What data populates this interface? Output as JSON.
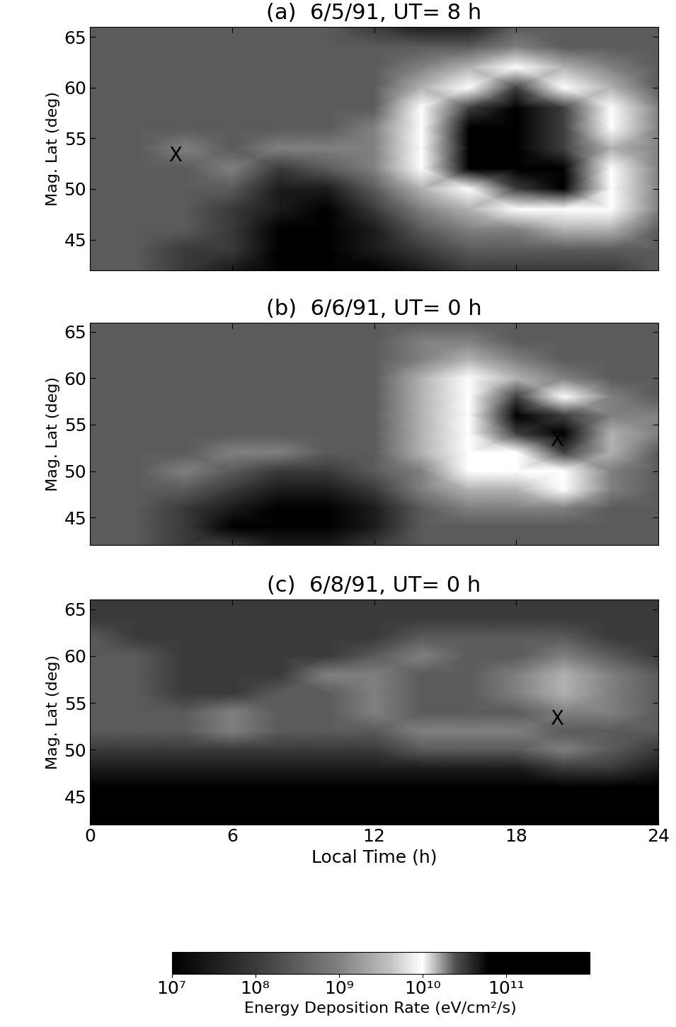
{
  "chart_data": [
    {
      "type": "heatmap",
      "title": "(a)  6/5/91, UT= 8 h",
      "y_label": "Mag. Lat (deg)",
      "tick_labels": "y",
      "x": [
        0,
        2,
        4,
        6,
        8,
        10,
        12,
        14,
        16,
        18,
        20,
        22,
        24
      ],
      "y": [
        66,
        64,
        62,
        60,
        58,
        56,
        54,
        52,
        50,
        48,
        46,
        44,
        42
      ],
      "values": [
        [
          300000000.0,
          300000000.0,
          300000000.0,
          300000000.0,
          300000000.0,
          300000000.0,
          100000000.0,
          30000000.0,
          30000000.0,
          300000000.0,
          300000000.0,
          300000000.0,
          300000000.0
        ],
        [
          300000000.0,
          300000000.0,
          300000000.0,
          300000000.0,
          300000000.0,
          300000000.0,
          300000000.0,
          300000000.0,
          300000000.0,
          1000000000.0,
          300000000.0,
          300000000.0,
          300000000.0
        ],
        [
          300000000.0,
          300000000.0,
          300000000.0,
          300000000.0,
          300000000.0,
          300000000.0,
          300000000.0,
          1000000000.0,
          3000000000.0,
          10000000000.0,
          3000000000.0,
          1000000000.0,
          300000000.0
        ],
        [
          300000000.0,
          300000000.0,
          300000000.0,
          300000000.0,
          300000000.0,
          300000000.0,
          300000000.0,
          3000000000.0,
          10000000000.0,
          30000000000.0,
          10000000000.0,
          3000000000.0,
          300000000.0
        ],
        [
          300000000.0,
          300000000.0,
          300000000.0,
          300000000.0,
          300000000.0,
          300000000.0,
          300000000.0,
          10000000000.0,
          30000000000.0,
          100000000000.0,
          30000000000.0,
          10000000000.0,
          1000000000.0
        ],
        [
          300000000.0,
          300000000.0,
          300000000.0,
          300000000.0,
          300000000.0,
          300000000.0,
          1000000000.0,
          10000000000.0,
          200000000000.0,
          200000000000.0,
          30000000000.0,
          10000000000.0,
          1000000000.0
        ],
        [
          300000000.0,
          300000000.0,
          1000000000.0,
          300000000.0,
          1000000000.0,
          1000000000.0,
          1000000000.0,
          10000000000.0,
          300000000000.0,
          200000000000.0,
          30000000000.0,
          3000000000.0,
          1000000000.0
        ],
        [
          300000000.0,
          300000000.0,
          300000000.0,
          1000000000.0,
          100000000.0,
          300000000.0,
          1000000000.0,
          10000000000.0,
          300000000000.0,
          300000000000.0,
          200000000000.0,
          10000000000.0,
          1000000000.0
        ],
        [
          300000000.0,
          300000000.0,
          300000000.0,
          300000000.0,
          30000000.0,
          30000000.0,
          300000000.0,
          3000000000.0,
          10000000000.0,
          30000000000.0,
          100000000000.0,
          10000000000.0,
          1000000000.0
        ],
        [
          300000000.0,
          300000000.0,
          300000000.0,
          100000000.0,
          30000000.0,
          10000000.0,
          100000000.0,
          1000000000.0,
          3000000000.0,
          10000000000.0,
          10000000000.0,
          10000000000.0,
          1000000000.0
        ],
        [
          300000000.0,
          300000000.0,
          300000000.0,
          100000000.0,
          10000000.0,
          10000000.0,
          30000000.0,
          300000000.0,
          1000000000.0,
          1000000000.0,
          3000000000.0,
          3000000000.0,
          300000000.0
        ],
        [
          300000000.0,
          300000000.0,
          100000000.0,
          100000000.0,
          10000000.0,
          10000000.0,
          30000000.0,
          100000000.0,
          300000000.0,
          300000000.0,
          300000000.0,
          300000000.0,
          300000000.0
        ],
        [
          300000000.0,
          300000000.0,
          100000000.0,
          30000000.0,
          10000000.0,
          10000000.0,
          10000000.0,
          30000000.0,
          100000000.0,
          100000000.0,
          100000000.0,
          100000000.0,
          300000000.0
        ]
      ],
      "xlim": [
        0,
        24
      ],
      "ylim": [
        42,
        66
      ],
      "xticks": [
        0,
        6,
        12,
        18,
        24
      ],
      "yticks": [
        45,
        50,
        55,
        60,
        65
      ],
      "annotations": [
        {
          "text": "X",
          "x": 3.6,
          "y": 53.3
        }
      ]
    },
    {
      "type": "heatmap",
      "title": "(b)  6/6/91, UT= 0 h",
      "y_label": "Mag. Lat (deg)",
      "tick_labels": "y",
      "x": [
        0,
        2,
        4,
        6,
        8,
        10,
        12,
        14,
        16,
        18,
        20,
        22,
        24
      ],
      "y": [
        66,
        64,
        62,
        60,
        58,
        56,
        54,
        52,
        50,
        48,
        46,
        44,
        42
      ],
      "values": [
        [
          300000000.0,
          300000000.0,
          300000000.0,
          300000000.0,
          300000000.0,
          300000000.0,
          300000000.0,
          300000000.0,
          300000000.0,
          300000000.0,
          300000000.0,
          300000000.0,
          300000000.0
        ],
        [
          300000000.0,
          300000000.0,
          300000000.0,
          300000000.0,
          300000000.0,
          300000000.0,
          300000000.0,
          1000000000.0,
          1000000000.0,
          300000000.0,
          300000000.0,
          300000000.0,
          300000000.0
        ],
        [
          300000000.0,
          300000000.0,
          300000000.0,
          300000000.0,
          300000000.0,
          300000000.0,
          300000000.0,
          1000000000.0,
          3000000000.0,
          1000000000.0,
          300000000.0,
          300000000.0,
          300000000.0
        ],
        [
          300000000.0,
          300000000.0,
          300000000.0,
          300000000.0,
          300000000.0,
          300000000.0,
          300000000.0,
          3000000000.0,
          10000000000.0,
          3000000000.0,
          1000000000.0,
          300000000.0,
          300000000.0
        ],
        [
          300000000.0,
          300000000.0,
          300000000.0,
          300000000.0,
          300000000.0,
          300000000.0,
          300000000.0,
          3000000000.0,
          10000000000.0,
          30000000000.0,
          10000000000.0,
          1000000000.0,
          300000000.0
        ],
        [
          300000000.0,
          300000000.0,
          300000000.0,
          300000000.0,
          300000000.0,
          300000000.0,
          300000000.0,
          3000000000.0,
          10000000000.0,
          200000000000.0,
          30000000000.0,
          1000000000.0,
          1000000000.0
        ],
        [
          300000000.0,
          300000000.0,
          300000000.0,
          300000000.0,
          300000000.0,
          300000000.0,
          300000000.0,
          3000000000.0,
          10000000000.0,
          30000000000.0,
          100000000000.0,
          3000000000.0,
          1000000000.0
        ],
        [
          300000000.0,
          300000000.0,
          300000000.0,
          1000000000.0,
          1000000000.0,
          300000000.0,
          300000000.0,
          3000000000.0,
          10000000000.0,
          10000000000.0,
          30000000000.0,
          3000000000.0,
          300000000.0
        ],
        [
          300000000.0,
          300000000.0,
          1000000000.0,
          300000000.0,
          100000000.0,
          100000000.0,
          300000000.0,
          1000000000.0,
          10000000000.0,
          10000000000.0,
          10000000000.0,
          1000000000.0,
          300000000.0
        ],
        [
          300000000.0,
          300000000.0,
          300000000.0,
          100000000.0,
          30000000.0,
          30000000.0,
          100000000.0,
          1000000000.0,
          3000000000.0,
          3000000000.0,
          10000000000.0,
          1000000000.0,
          300000000.0
        ],
        [
          300000000.0,
          300000000.0,
          100000000.0,
          30000000.0,
          10000000.0,
          10000000.0,
          30000000.0,
          300000000.0,
          1000000000.0,
          1000000000.0,
          1000000000.0,
          300000000.0,
          300000000.0
        ],
        [
          300000000.0,
          300000000.0,
          100000000.0,
          10000000.0,
          10000000.0,
          10000000.0,
          30000000.0,
          300000000.0,
          300000000.0,
          300000000.0,
          300000000.0,
          300000000.0,
          300000000.0
        ],
        [
          300000000.0,
          300000000.0,
          100000000.0,
          100000000.0,
          30000000.0,
          30000000.0,
          100000000.0,
          300000000.0,
          300000000.0,
          300000000.0,
          300000000.0,
          300000000.0,
          300000000.0
        ]
      ],
      "xlim": [
        0,
        24
      ],
      "ylim": [
        42,
        66
      ],
      "xticks": [
        0,
        6,
        12,
        18,
        24
      ],
      "yticks": [
        45,
        50,
        55,
        60,
        65
      ],
      "annotations": [
        {
          "text": "X",
          "x": 19.7,
          "y": 53.3
        }
      ]
    },
    {
      "type": "heatmap",
      "title": "(c)  6/8/91, UT= 0 h",
      "y_label": "Mag. Lat (deg)",
      "x_label": "Local Time (h)",
      "x": [
        0,
        2,
        4,
        6,
        8,
        10,
        12,
        14,
        16,
        18,
        20,
        22,
        24
      ],
      "y": [
        66,
        64,
        62,
        60,
        58,
        56,
        54,
        52,
        50,
        48,
        46,
        44,
        42
      ],
      "values": [
        [
          100000000.0,
          100000000.0,
          100000000.0,
          100000000.0,
          100000000.0,
          100000000.0,
          100000000.0,
          100000000.0,
          100000000.0,
          100000000.0,
          100000000.0,
          100000000.0,
          100000000.0
        ],
        [
          100000000.0,
          100000000.0,
          100000000.0,
          100000000.0,
          100000000.0,
          100000000.0,
          100000000.0,
          100000000.0,
          100000000.0,
          100000000.0,
          100000000.0,
          100000000.0,
          100000000.0
        ],
        [
          300000000.0,
          100000000.0,
          100000000.0,
          100000000.0,
          100000000.0,
          100000000.0,
          100000000.0,
          300000000.0,
          300000000.0,
          300000000.0,
          300000000.0,
          100000000.0,
          100000000.0
        ],
        [
          300000000.0,
          300000000.0,
          100000000.0,
          100000000.0,
          100000000.0,
          100000000.0,
          300000000.0,
          1000000000.0,
          300000000.0,
          300000000.0,
          1000000000.0,
          300000000.0,
          100000000.0
        ],
        [
          300000000.0,
          300000000.0,
          100000000.0,
          100000000.0,
          100000000.0,
          1000000000.0,
          1000000000.0,
          300000000.0,
          300000000.0,
          1000000000.0,
          3000000000.0,
          1000000000.0,
          300000000.0
        ],
        [
          300000000.0,
          300000000.0,
          100000000.0,
          100000000.0,
          300000000.0,
          300000000.0,
          1000000000.0,
          300000000.0,
          300000000.0,
          1000000000.0,
          3000000000.0,
          1000000000.0,
          300000000.0
        ],
        [
          300000000.0,
          300000000.0,
          300000000.0,
          1000000000.0,
          300000000.0,
          300000000.0,
          1000000000.0,
          300000000.0,
          300000000.0,
          300000000.0,
          1000000000.0,
          1000000000.0,
          300000000.0
        ],
        [
          300000000.0,
          300000000.0,
          300000000.0,
          1000000000.0,
          300000000.0,
          300000000.0,
          300000000.0,
          1000000000.0,
          1000000000.0,
          1000000000.0,
          300000000.0,
          300000000.0,
          300000000.0
        ],
        [
          100000000.0,
          100000000.0,
          100000000.0,
          100000000.0,
          100000000.0,
          100000000.0,
          100000000.0,
          300000000.0,
          300000000.0,
          300000000.0,
          1000000000.0,
          300000000.0,
          100000000.0
        ],
        [
          30000000.0,
          30000000.0,
          30000000.0,
          30000000.0,
          30000000.0,
          30000000.0,
          30000000.0,
          30000000.0,
          30000000.0,
          30000000.0,
          100000000.0,
          100000000.0,
          30000000.0
        ],
        [
          10000000.0,
          10000000.0,
          10000000.0,
          10000000.0,
          10000000.0,
          10000000.0,
          10000000.0,
          10000000.0,
          10000000.0,
          10000000.0,
          10000000.0,
          10000000.0,
          10000000.0
        ],
        [
          10000000.0,
          10000000.0,
          10000000.0,
          10000000.0,
          10000000.0,
          10000000.0,
          10000000.0,
          10000000.0,
          10000000.0,
          10000000.0,
          10000000.0,
          10000000.0,
          10000000.0
        ],
        [
          10000000.0,
          10000000.0,
          10000000.0,
          10000000.0,
          10000000.0,
          10000000.0,
          10000000.0,
          10000000.0,
          10000000.0,
          10000000.0,
          10000000.0,
          10000000.0,
          10000000.0
        ]
      ],
      "xlim": [
        0,
        24
      ],
      "ylim": [
        42,
        66
      ],
      "xticks": [
        0,
        6,
        12,
        18,
        24
      ],
      "yticks": [
        45,
        50,
        55,
        60,
        65
      ],
      "annotations": [
        {
          "text": "X",
          "x": 19.7,
          "y": 53.3
        }
      ]
    }
  ],
  "colorbar": {
    "label": "Energy Deposition Rate (eV/cm²/s)",
    "log": true,
    "range": [
      10000000.0,
      1000000000000.0
    ],
    "ticks": [
      {
        "value": 10000000.0,
        "label": "10⁷"
      },
      {
        "value": 100000000.0,
        "label": "10⁸"
      },
      {
        "value": 1000000000.0,
        "label": "10⁹"
      },
      {
        "value": 10000000000.0,
        "label": "10¹⁰"
      },
      {
        "value": 100000000000.0,
        "label": "10¹¹"
      }
    ]
  }
}
